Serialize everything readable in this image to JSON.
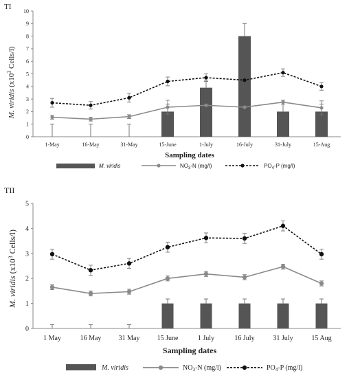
{
  "chart_data": [
    {
      "type": "bar+line",
      "panel_label": "TI",
      "xlabel": "Sampling dates",
      "ylabel_prefix": "M. viridis",
      "ylabel_suffix": " (x10",
      "ylabel_sup": "3",
      "ylabel_end": " Cells/l)",
      "categories": [
        "1-May",
        "16-May",
        "31-May",
        "15-June",
        "1-July",
        "16-July",
        "31-July",
        "15-Aug"
      ],
      "yticks": [
        0,
        1,
        2,
        3,
        4,
        5,
        6,
        7,
        8,
        9,
        10
      ],
      "ylim": [
        0,
        10
      ],
      "grid": false,
      "legend_position": "bottom",
      "series": [
        {
          "name": "M. viridis",
          "kind": "bar",
          "color": "#555555",
          "values": [
            0,
            0,
            0,
            2.0,
            3.9,
            8.0,
            2.0,
            2.0
          ],
          "err": [
            1.0,
            1.0,
            1.0,
            0.6,
            0.6,
            1.0,
            0.6,
            0.6
          ]
        },
        {
          "name": "NO3-N (mg/l)",
          "kind": "line",
          "color": "#8a8a8a",
          "dash": false,
          "values": [
            1.55,
            1.4,
            1.6,
            2.35,
            2.5,
            2.35,
            2.75,
            2.3
          ],
          "err": [
            0.15,
            0.15,
            0.15,
            0.55,
            0.0,
            0.0,
            0.15,
            0.55
          ]
        },
        {
          "name": "PO4-P (mg/l)",
          "kind": "line",
          "color": "#111111",
          "dash": true,
          "values": [
            2.7,
            2.5,
            3.1,
            4.4,
            4.7,
            4.5,
            5.1,
            4.0
          ],
          "err": [
            0.35,
            0.3,
            0.35,
            0.35,
            0.3,
            0.0,
            0.3,
            0.3
          ]
        }
      ]
    },
    {
      "type": "bar+line",
      "panel_label": "TII",
      "xlabel": "Sampling dates",
      "ylabel_prefix": "M. viridis",
      "ylabel_suffix": " (x10",
      "ylabel_sup": "3",
      "ylabel_end": " Cells/l)",
      "categories": [
        "1 May",
        "16 May",
        "31 May",
        "15 June",
        "1 July",
        "16 July",
        "31 July",
        "15 Aug"
      ],
      "yticks": [
        0,
        1,
        2,
        3,
        4,
        5
      ],
      "ylim": [
        0,
        5
      ],
      "grid": false,
      "legend_position": "bottom",
      "series": [
        {
          "name": "M. viridis",
          "kind": "bar",
          "color": "#555555",
          "values": [
            0,
            0,
            0,
            1.0,
            1.0,
            1.0,
            1.0,
            1.0
          ],
          "err": [
            0.15,
            0.15,
            0.15,
            0.18,
            0.18,
            0.18,
            0.18,
            0.18
          ]
        },
        {
          "name": "NO3-N (mg/l)",
          "kind": "line",
          "color": "#8a8a8a",
          "dash": false,
          "values": [
            1.65,
            1.4,
            1.47,
            2.0,
            2.18,
            2.05,
            2.47,
            1.8
          ],
          "err": [
            0.1,
            0.1,
            0.1,
            0.1,
            0.1,
            0.1,
            0.1,
            0.1
          ]
        },
        {
          "name": "PO4-P (mg/l)",
          "kind": "line",
          "color": "#111111",
          "dash": true,
          "values": [
            2.97,
            2.33,
            2.6,
            3.25,
            3.62,
            3.6,
            4.1,
            2.97
          ],
          "err": [
            0.2,
            0.2,
            0.2,
            0.2,
            0.2,
            0.2,
            0.2,
            0.2
          ]
        }
      ]
    }
  ]
}
